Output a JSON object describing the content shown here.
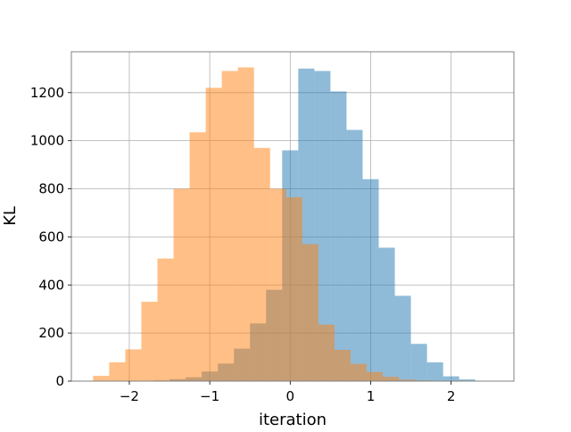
{
  "chart_data": {
    "type": "histogram",
    "title": "",
    "xlabel": "iteration",
    "ylabel": "KL",
    "xlim": [
      -2.72,
      2.78
    ],
    "ylim": [
      0,
      1370
    ],
    "xticks": [
      -2,
      -1,
      0,
      1,
      2
    ],
    "xtick_labels": [
      "−2",
      "−1",
      "0",
      "1",
      "2"
    ],
    "yticks": [
      0,
      200,
      400,
      600,
      800,
      1000,
      1200
    ],
    "ytick_labels": [
      "0",
      "200",
      "400",
      "600",
      "800",
      "1000",
      "1200"
    ],
    "grid": true,
    "legend": "none",
    "series": [
      {
        "color": "#1f77b4",
        "alpha": 0.5,
        "bin_edges": [
          -2.1,
          -1.9,
          -1.7,
          -1.5,
          -1.3,
          -1.1,
          -0.9,
          -0.7,
          -0.5,
          -0.3,
          -0.1,
          0.1,
          0.3,
          0.5,
          0.7,
          0.9,
          1.1,
          1.3,
          1.5,
          1.7,
          1.9,
          2.1,
          2.3
        ],
        "values": [
          0,
          0,
          3,
          8,
          16,
          40,
          73,
          135,
          240,
          380,
          960,
          1300,
          1290,
          1205,
          1045,
          840,
          555,
          355,
          155,
          78,
          20,
          7
        ]
      },
      {
        "color": "#ff7f0e",
        "alpha": 0.5,
        "bin_edges": [
          -2.45,
          -2.25,
          -2.05,
          -1.85,
          -1.65,
          -1.45,
          -1.25,
          -1.05,
          -0.85,
          -0.65,
          -0.45,
          -0.25,
          -0.05,
          0.15,
          0.35,
          0.55,
          0.75,
          0.95,
          1.15,
          1.35,
          1.55,
          1.75
        ],
        "values": [
          22,
          78,
          132,
          330,
          510,
          800,
          1035,
          1220,
          1290,
          1305,
          970,
          800,
          765,
          570,
          235,
          130,
          72,
          38,
          18,
          6,
          3
        ]
      }
    ]
  }
}
